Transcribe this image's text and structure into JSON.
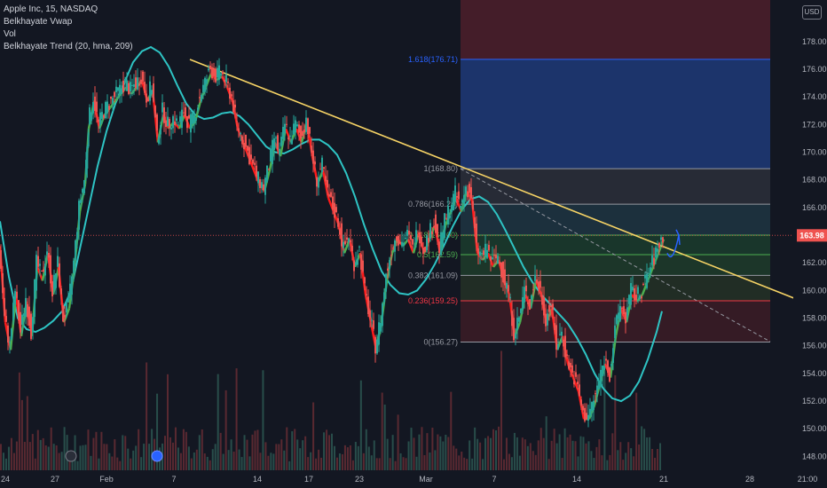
{
  "legend": {
    "symbol": "Apple Inc, 15, NASDAQ",
    "ind1": "Belkhayate Vwap",
    "ind2": "Vol",
    "ind3": "Belkhayate Trend (20, hma, 209)"
  },
  "currency": "USD",
  "last_price_label": "163.98",
  "colors": {
    "background": "#131722",
    "up": "#26a69a",
    "down": "#ef5350",
    "trend_red": "#ff1a1a",
    "trend_green": "#4caf50",
    "vwap": "#2ec4c4",
    "trendline": "#f6d365",
    "fib_blue": "#1f3a78",
    "fib_red": "#4a1e2a",
    "fib_gray": "#2a2e39"
  },
  "chart_data": {
    "type": "candlestick",
    "ylim": [
      147,
      181
    ],
    "y_ticks": [
      "178.00",
      "176.00",
      "174.00",
      "172.00",
      "170.00",
      "168.00",
      "166.00",
      "164.00",
      "162.00",
      "160.00",
      "158.00",
      "156.00",
      "154.00",
      "152.00",
      "150.00",
      "148.00"
    ],
    "x_ticks": [
      "24",
      "27",
      "Feb",
      "7",
      "14",
      "17",
      "23",
      "Mar",
      "7",
      "14",
      "21",
      "28",
      "21:00"
    ],
    "last_price": 163.98,
    "fib_levels": [
      {
        "label": "1.618(176.71)",
        "value": 176.71,
        "color": "#2962ff"
      },
      {
        "label": "1(168.80)",
        "value": 168.8,
        "color": "#9598a1"
      },
      {
        "label": "0.786(166.24)",
        "value": 166.24,
        "color": "#9598a1"
      },
      {
        "label": "0.618(164.00)",
        "value": 164.0,
        "color": "#4caf50"
      },
      {
        "label": "0.5(162.59)",
        "value": 162.59,
        "color": "#4caf50"
      },
      {
        "label": "0.382(161.09)",
        "value": 161.09,
        "color": "#9598a1"
      },
      {
        "label": "0.236(159.25)",
        "value": 159.25,
        "color": "#f23645"
      },
      {
        "label": "0(156.27)",
        "value": 156.27,
        "color": "#9598a1"
      }
    ],
    "price_path": [
      [
        0,
        163.5
      ],
      [
        6,
        158
      ],
      [
        12,
        156
      ],
      [
        18,
        160
      ],
      [
        24,
        157
      ],
      [
        30,
        159.5
      ],
      [
        36,
        157
      ],
      [
        42,
        162
      ],
      [
        48,
        161
      ],
      [
        54,
        163
      ],
      [
        60,
        160
      ],
      [
        66,
        162
      ],
      [
        72,
        158
      ],
      [
        78,
        159
      ],
      [
        84,
        162
      ],
      [
        90,
        166
      ],
      [
        96,
        168
      ],
      [
        100,
        172
      ],
      [
        106,
        174
      ],
      [
        112,
        172
      ],
      [
        118,
        173
      ],
      [
        124,
        173.5
      ],
      [
        130,
        174
      ],
      [
        136,
        174.5
      ],
      [
        142,
        175
      ],
      [
        148,
        174.5
      ],
      [
        154,
        175
      ],
      [
        160,
        175.5
      ],
      [
        166,
        174
      ],
      [
        172,
        174.8
      ],
      [
        178,
        171
      ],
      [
        184,
        173
      ],
      [
        190,
        172
      ],
      [
        196,
        172.5
      ],
      [
        202,
        172
      ],
      [
        208,
        173
      ],
      [
        214,
        172
      ],
      [
        220,
        172.5
      ],
      [
        226,
        174
      ],
      [
        232,
        175
      ],
      [
        238,
        176
      ],
      [
        244,
        175.5
      ],
      [
        250,
        175.8
      ],
      [
        256,
        175
      ],
      [
        262,
        174
      ],
      [
        268,
        172
      ],
      [
        274,
        171
      ],
      [
        280,
        170
      ],
      [
        286,
        169
      ],
      [
        292,
        168
      ],
      [
        298,
        167.5
      ],
      [
        304,
        169
      ],
      [
        310,
        171
      ],
      [
        316,
        170
      ],
      [
        322,
        172
      ],
      [
        328,
        171
      ],
      [
        334,
        172
      ],
      [
        340,
        171
      ],
      [
        346,
        172.5
      ],
      [
        352,
        170
      ],
      [
        358,
        168
      ],
      [
        364,
        169
      ],
      [
        370,
        167
      ],
      [
        376,
        166
      ],
      [
        382,
        165
      ],
      [
        388,
        163
      ],
      [
        394,
        164
      ],
      [
        400,
        162
      ],
      [
        406,
        163
      ],
      [
        412,
        160
      ],
      [
        418,
        158
      ],
      [
        424,
        156
      ],
      [
        430,
        158
      ],
      [
        436,
        161
      ],
      [
        442,
        163
      ],
      [
        448,
        164
      ],
      [
        454,
        163.5
      ],
      [
        460,
        164
      ],
      [
        466,
        163
      ],
      [
        472,
        164.5
      ],
      [
        478,
        163
      ],
      [
        484,
        164
      ],
      [
        490,
        165
      ],
      [
        496,
        163
      ],
      [
        502,
        165
      ],
      [
        508,
        166
      ],
      [
        514,
        167
      ],
      [
        520,
        166
      ],
      [
        526,
        167.5
      ],
      [
        532,
        166.8
      ],
      [
        538,
        163
      ],
      [
        544,
        162.5
      ],
      [
        550,
        163
      ],
      [
        556,
        162
      ],
      [
        562,
        162.5
      ],
      [
        568,
        161
      ],
      [
        574,
        160
      ],
      [
        580,
        157
      ],
      [
        586,
        158
      ],
      [
        592,
        160
      ],
      [
        598,
        159
      ],
      [
        604,
        161
      ],
      [
        610,
        160
      ],
      [
        616,
        158
      ],
      [
        622,
        159
      ],
      [
        628,
        156
      ],
      [
        634,
        157
      ],
      [
        640,
        155
      ],
      [
        646,
        154
      ],
      [
        652,
        153
      ],
      [
        658,
        151
      ],
      [
        664,
        151
      ],
      [
        670,
        152
      ],
      [
        676,
        153.5
      ],
      [
        682,
        155
      ],
      [
        688,
        154
      ],
      [
        694,
        157
      ],
      [
        700,
        159
      ],
      [
        706,
        158
      ],
      [
        712,
        160
      ],
      [
        718,
        159.5
      ],
      [
        724,
        160
      ],
      [
        730,
        161
      ],
      [
        736,
        162
      ],
      [
        742,
        163
      ],
      [
        748,
        164
      ]
    ],
    "vwap_path": [
      [
        0,
        165
      ],
      [
        10,
        161
      ],
      [
        20,
        158
      ],
      [
        30,
        157.2
      ],
      [
        40,
        157
      ],
      [
        50,
        157.3
      ],
      [
        60,
        157.8
      ],
      [
        70,
        158.5
      ],
      [
        80,
        160
      ],
      [
        90,
        163
      ],
      [
        100,
        166
      ],
      [
        110,
        169
      ],
      [
        120,
        171.5
      ],
      [
        130,
        173.5
      ],
      [
        140,
        175
      ],
      [
        150,
        176.5
      ],
      [
        160,
        177.3
      ],
      [
        170,
        177.6
      ],
      [
        180,
        177.2
      ],
      [
        190,
        176.2
      ],
      [
        200,
        174.8
      ],
      [
        210,
        173.5
      ],
      [
        220,
        172.7
      ],
      [
        230,
        172.4
      ],
      [
        240,
        172.5
      ],
      [
        250,
        172.8
      ],
      [
        260,
        172.9
      ],
      [
        270,
        172.6
      ],
      [
        280,
        172
      ],
      [
        290,
        171.2
      ],
      [
        300,
        170.4
      ],
      [
        310,
        170
      ],
      [
        320,
        169.9
      ],
      [
        330,
        170.2
      ],
      [
        340,
        170.6
      ],
      [
        350,
        170.9
      ],
      [
        360,
        170.9
      ],
      [
        370,
        170.5
      ],
      [
        380,
        169.8
      ],
      [
        390,
        168.5
      ],
      [
        400,
        166.8
      ],
      [
        410,
        164.8
      ],
      [
        420,
        163
      ],
      [
        430,
        161.4
      ],
      [
        440,
        160.4
      ],
      [
        450,
        159.8
      ],
      [
        460,
        159.7
      ],
      [
        470,
        160
      ],
      [
        480,
        160.8
      ],
      [
        490,
        161.9
      ],
      [
        500,
        163.2
      ],
      [
        510,
        164.6
      ],
      [
        520,
        165.8
      ],
      [
        530,
        166.6
      ],
      [
        540,
        166.8
      ],
      [
        550,
        166.4
      ],
      [
        560,
        165.5
      ],
      [
        570,
        164.3
      ],
      [
        580,
        163
      ],
      [
        590,
        161.7
      ],
      [
        600,
        160.6
      ],
      [
        610,
        159.7
      ],
      [
        620,
        159
      ],
      [
        630,
        158.3
      ],
      [
        640,
        157.6
      ],
      [
        650,
        156.6
      ],
      [
        660,
        155.4
      ],
      [
        670,
        154
      ],
      [
        680,
        152.9
      ],
      [
        690,
        152.2
      ],
      [
        700,
        152
      ],
      [
        710,
        152.4
      ],
      [
        720,
        153.4
      ],
      [
        730,
        155
      ],
      [
        740,
        157
      ],
      [
        746,
        158.5
      ]
    ],
    "trendline": {
      "x1": 214,
      "y1": 176.7,
      "x2": 932,
      "y2": 158.5
    },
    "volume_bars": 250
  }
}
